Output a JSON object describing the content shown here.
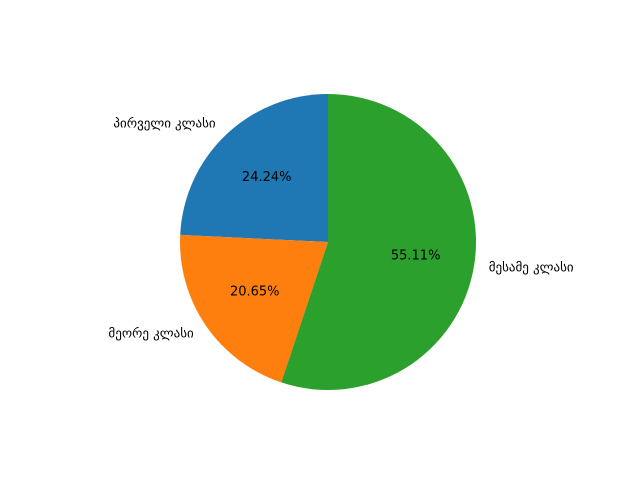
{
  "chart_data": {
    "type": "pie",
    "title": "",
    "start_angle_deg": 90,
    "direction": "counterclockwise",
    "slices": [
      {
        "label": "პირველი კლასი",
        "value": 24.24,
        "pct_label": "24.24%",
        "color": "#1f77b4"
      },
      {
        "label": "მეორე კლასი",
        "value": 20.65,
        "pct_label": "20.65%",
        "color": "#ff7f0e"
      },
      {
        "label": "მესამე კლასი",
        "value": 55.11,
        "pct_label": "55.11%",
        "color": "#2ca02c"
      }
    ]
  }
}
